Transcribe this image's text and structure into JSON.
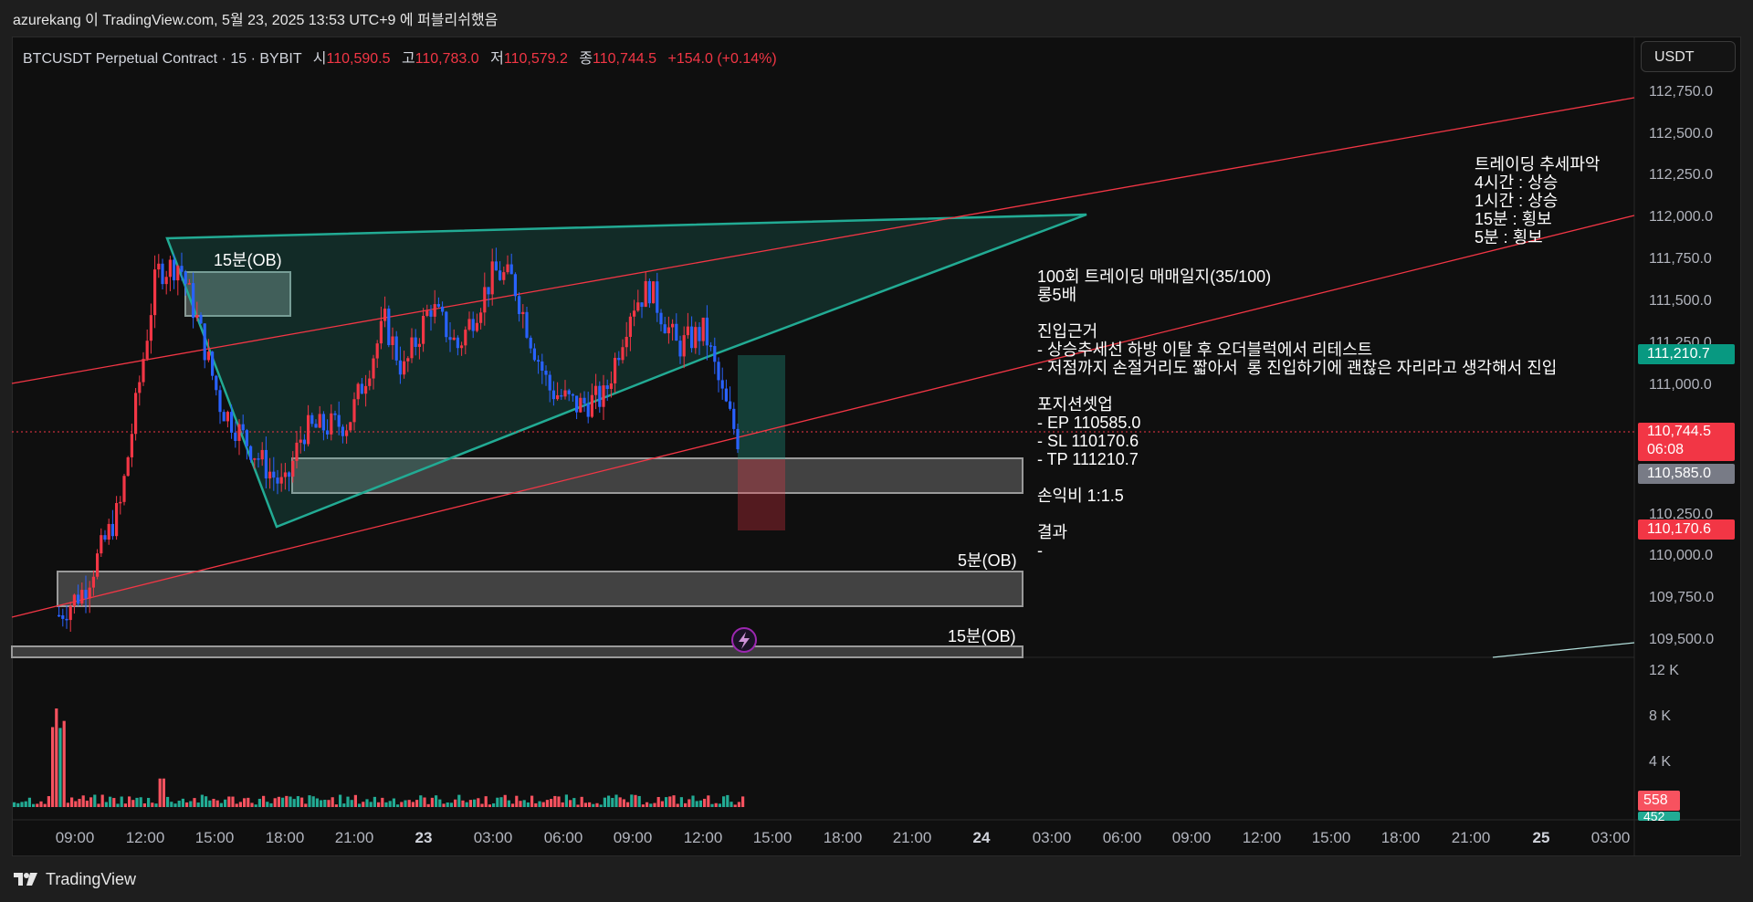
{
  "header": {
    "publish_info": "azurekang 이 TradingView.com, 5월 23, 2025 13:53 UTC+9 에 퍼블리쉬했음"
  },
  "symbol": {
    "title": "BTCUSDT Perpetual Contract · 15 · BYBIT",
    "open_label": "시",
    "open": "110,590.5",
    "high_label": "고",
    "high": "110,783.0",
    "low_label": "저",
    "low": "110,579.2",
    "close_label": "종",
    "close": "110,744.5",
    "change": "+154.0 (+0.14%)"
  },
  "currency_button": "USDT",
  "price_axis": [
    "112,750.0",
    "112,500.0",
    "112,250.0",
    "112,000.0",
    "111,750.0",
    "111,500.0",
    "111,250.0",
    "111,000.0",
    "110,250.0",
    "110,000.0",
    "109,750.0",
    "109,500.0"
  ],
  "price_tags": {
    "tp": "111,210.7",
    "last": "110,744.5",
    "countdown": "06:08",
    "ep": "110,585.0",
    "sl": "110,170.6"
  },
  "volume_axis": [
    "12 K",
    "8 K",
    "4 K"
  ],
  "volume_tags": {
    "current": "558",
    "prev": "452"
  },
  "time_axis": [
    {
      "label": "09:00",
      "bold": false
    },
    {
      "label": "12:00",
      "bold": false
    },
    {
      "label": "15:00",
      "bold": false
    },
    {
      "label": "18:00",
      "bold": false
    },
    {
      "label": "21:00",
      "bold": false
    },
    {
      "label": "23",
      "bold": true
    },
    {
      "label": "03:00",
      "bold": false
    },
    {
      "label": "06:00",
      "bold": false
    },
    {
      "label": "09:00",
      "bold": false
    },
    {
      "label": "12:00",
      "bold": false
    },
    {
      "label": "15:00",
      "bold": false
    },
    {
      "label": "18:00",
      "bold": false
    },
    {
      "label": "21:00",
      "bold": false
    },
    {
      "label": "24",
      "bold": true
    },
    {
      "label": "03:00",
      "bold": false
    },
    {
      "label": "06:00",
      "bold": false
    },
    {
      "label": "09:00",
      "bold": false
    },
    {
      "label": "12:00",
      "bold": false
    },
    {
      "label": "15:00",
      "bold": false
    },
    {
      "label": "18:00",
      "bold": false
    },
    {
      "label": "21:00",
      "bold": false
    },
    {
      "label": "25",
      "bold": true
    },
    {
      "label": "03:00",
      "bold": false
    }
  ],
  "ob_labels": {
    "ob15_top": "15분(OB)",
    "ob5": "5분(OB)",
    "ob15_bottom": "15분(OB)"
  },
  "notes": {
    "trend_title": "트레이딩 추세파악",
    "trend_lines": "4시간 : 상승\n1시간 : 상승\n15분 : 횡보\n5분 : 횡보",
    "journal_title": "100회 트레이딩 매매일지(35/100)",
    "leverage": "롱5배",
    "reason_title": "진입근거",
    "reason_lines": "- 상승추세선 하방 이탈 후 오더블럭에서 리테스트\n- 저점까지 손절거리도 짧아서  롱 진입하기에 괜찮은 자리라고 생각해서 진입",
    "setup_title": "포지션셋업",
    "setup_lines": "- EP 110585.0\n- SL 110170.6\n- TP 111210.7",
    "rr": "손익비 1:1.5",
    "result_title": "결과",
    "result_value": "-"
  },
  "footer": {
    "brand": "TradingView"
  },
  "colors": {
    "up": "#f23645",
    "down": "#2962ff",
    "vol_up": "#f7525f",
    "vol_down": "#22ab94",
    "triangle": "#22ab94",
    "trendline": "#f23645",
    "tp_tag": "#089981",
    "ep_tag": "#787b86"
  },
  "icons": {
    "flash": "lightning-icon",
    "logo": "tradingview-logo-icon"
  }
}
